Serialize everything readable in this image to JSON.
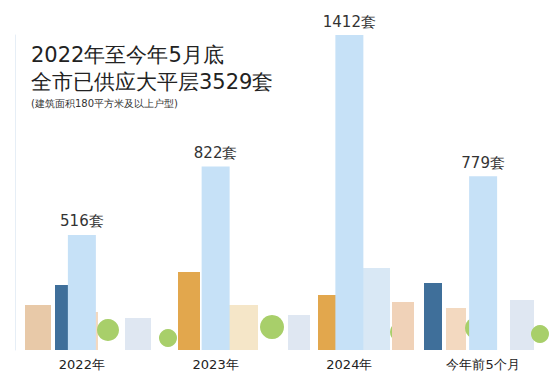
{
  "chart_data": {
    "type": "bar",
    "title": "2022年至今年5月底\n全市已供应大平层3529套",
    "subtitle": "(建筑面积180平方米及以上户型)",
    "categories": [
      "2022年",
      "2023年",
      "2024年",
      "今年前5个月"
    ],
    "values": [
      516,
      822,
      1412,
      779
    ],
    "value_labels": [
      "516套",
      "822套",
      "1412套",
      "779套"
    ],
    "color": "#c6e1f7",
    "ylim": [
      0,
      1412
    ],
    "grid": false,
    "data_labels": true,
    "tick_labels": "x"
  }
}
